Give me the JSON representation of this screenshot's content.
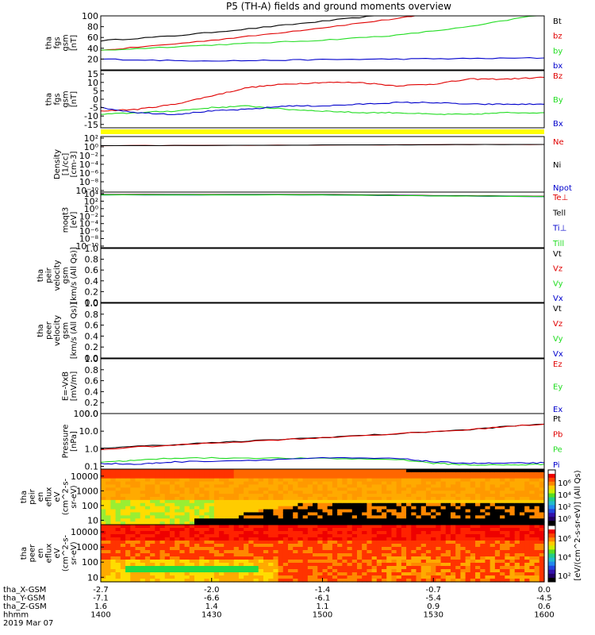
{
  "title": "P5 (TH-A) fields and ground moments overview",
  "colors": {
    "black": "#000000",
    "red": "#e00000",
    "green": "#22dd22",
    "blue": "#0000cc",
    "yellow": "#ffff00"
  },
  "chart_data": [
    {
      "type": "line",
      "id": "fgs-gsm-mag",
      "ylabel": [
        "tha",
        "fgs",
        "gsm",
        "[nT]"
      ],
      "ylim": [
        0,
        100
      ],
      "yticks": [
        "20",
        "40",
        "60",
        "80",
        "100"
      ],
      "series": [
        {
          "name": "Bt",
          "color": "#000000",
          "x": [
            0,
            10,
            20,
            30,
            40
          ],
          "y": [
            54,
            63,
            76,
            90,
            104
          ]
        },
        {
          "name": "bz",
          "color": "#e00000",
          "x": [
            0,
            10,
            20,
            30,
            40,
            45
          ],
          "y": [
            36,
            48,
            62,
            78,
            95,
            104
          ]
        },
        {
          "name": "by",
          "color": "#22dd22",
          "x": [
            0,
            10,
            20,
            30,
            40,
            50,
            60
          ],
          "y": [
            36,
            43,
            49,
            55,
            64,
            80,
            104
          ]
        },
        {
          "name": "bx",
          "color": "#0000cc",
          "x": [
            0,
            10,
            20,
            30,
            40,
            50,
            60
          ],
          "y": [
            20,
            17,
            17,
            19,
            20,
            21,
            22
          ]
        }
      ],
      "legend": [
        {
          "text": "Bt",
          "color": "#000000"
        },
        {
          "text": "bz",
          "color": "#e00000"
        },
        {
          "text": "by",
          "color": "#22dd22"
        },
        {
          "text": "bx",
          "color": "#0000cc"
        }
      ]
    },
    {
      "type": "line",
      "id": "fgs-gsm-comp",
      "ylabel": [
        "tha",
        "fgs",
        "gsm",
        "[nT]"
      ],
      "ylim": [
        -17,
        17
      ],
      "yticks": [
        "-15",
        "-10",
        "-5",
        "0",
        "5",
        "10",
        "15"
      ],
      "series": [
        {
          "name": "Bz",
          "color": "#e00000",
          "x": [
            0,
            5,
            10,
            15,
            20,
            25,
            30,
            35,
            40,
            45,
            50,
            55,
            60
          ],
          "y": [
            -7,
            -6,
            -3,
            2,
            7,
            9,
            10,
            10,
            8,
            9,
            12,
            12,
            13
          ]
        },
        {
          "name": "By",
          "color": "#22dd22",
          "x": [
            0,
            5,
            10,
            15,
            20,
            25,
            30,
            35,
            40,
            45,
            50,
            55,
            60
          ],
          "y": [
            -9,
            -8,
            -7,
            -5,
            -4,
            -6,
            -7,
            -8,
            -8,
            -9,
            -9,
            -8,
            -8
          ]
        },
        {
          "name": "Bx",
          "color": "#0000cc",
          "x": [
            0,
            5,
            10,
            15,
            20,
            25,
            30,
            35,
            40,
            45,
            50,
            55,
            60
          ],
          "y": [
            -5,
            -8,
            -9,
            -7,
            -6,
            -4,
            -4,
            -3,
            -2,
            -2,
            -3,
            -3,
            -3
          ]
        }
      ],
      "legend": [
        {
          "text": "Bz",
          "color": "#e00000"
        },
        {
          "text": "By",
          "color": "#22dd22"
        },
        {
          "text": "Bx",
          "color": "#0000cc"
        }
      ]
    },
    {
      "type": "line",
      "id": "density",
      "ylabel": [
        "Density",
        "[1/cc]",
        "[cm-3]"
      ],
      "ylim": [
        1e-12,
        100
      ],
      "log": true,
      "yticks": [
        "10²",
        "10⁰",
        "10⁻²",
        "10⁻⁴",
        "10⁻⁶",
        "10⁻⁸",
        "10⁻¹⁰"
      ],
      "series": [
        {
          "name": "Ne",
          "color": "#e00000",
          "x": [
            0,
            20,
            40,
            60
          ],
          "y": [
            0.5,
            0.6,
            0.8,
            1.0
          ]
        },
        {
          "name": "Ni",
          "color": "#000000",
          "x": [
            0,
            20,
            40,
            60
          ],
          "y": [
            0.5,
            0.6,
            0.8,
            1.0
          ]
        }
      ],
      "legend": [
        {
          "text": "Ne",
          "color": "#e00000"
        },
        {
          "text": "Ni",
          "color": "#000000"
        },
        {
          "text": "Npot",
          "color": "#0000cc"
        }
      ]
    },
    {
      "type": "line",
      "id": "temperature",
      "ylabel": [
        "moqt3",
        "[eV]"
      ],
      "ylim": [
        1e-12,
        10000
      ],
      "log": true,
      "yticks": [
        "10⁴",
        "10²",
        "10⁰",
        "10⁻²",
        "10⁻⁴",
        "10⁻⁶",
        "10⁻⁸",
        "10⁻¹⁰"
      ],
      "series": [
        {
          "name": "Te⊥",
          "color": "#e00000",
          "x": [
            0,
            30,
            45,
            60
          ],
          "y": [
            2000,
            2000,
            1000,
            600
          ]
        },
        {
          "name": "Tell",
          "color": "#000000",
          "x": [
            0,
            30,
            45,
            60
          ],
          "y": [
            2000,
            2000,
            1000,
            600
          ]
        },
        {
          "name": "Ti⊥",
          "color": "#0000cc",
          "x": [
            0,
            30,
            45,
            60
          ],
          "y": [
            1500,
            1500,
            800,
            500
          ]
        },
        {
          "name": "Till",
          "color": "#22dd22",
          "x": [
            0,
            30,
            45,
            60
          ],
          "y": [
            1500,
            1500,
            800,
            500
          ]
        }
      ],
      "legend": [
        {
          "text": "Te⊥",
          "color": "#e00000"
        },
        {
          "text": "Tell",
          "color": "#000000"
        },
        {
          "text": "Ti⊥",
          "color": "#0000cc"
        },
        {
          "text": "Till",
          "color": "#22dd22"
        }
      ]
    },
    {
      "type": "line",
      "id": "peir-velocity",
      "ylabel": [
        "tha",
        "peir",
        "velocity",
        "gsm",
        "[km/s (All Qs)]"
      ],
      "ylim": [
        0,
        1
      ],
      "yticks": [
        "0.0",
        "0.2",
        "0.4",
        "0.6",
        "0.8",
        "1.0"
      ],
      "series": [],
      "legend": [
        {
          "text": "Vt",
          "color": "#000000"
        },
        {
          "text": "Vz",
          "color": "#e00000"
        },
        {
          "text": "Vy",
          "color": "#22dd22"
        },
        {
          "text": "Vx",
          "color": "#0000cc"
        }
      ]
    },
    {
      "type": "line",
      "id": "peer-velocity",
      "ylabel": [
        "tha",
        "peer",
        "velocity",
        "gsm",
        "[km/s (All Qs)]"
      ],
      "ylim": [
        0,
        1
      ],
      "yticks": [
        "0.0",
        "0.2",
        "0.4",
        "0.6",
        "0.8",
        "1.0"
      ],
      "series": [],
      "legend": [
        {
          "text": "Vt",
          "color": "#000000"
        },
        {
          "text": "Vz",
          "color": "#e00000"
        },
        {
          "text": "Vy",
          "color": "#22dd22"
        },
        {
          "text": "Vx",
          "color": "#0000cc"
        }
      ]
    },
    {
      "type": "line",
      "id": "efield",
      "ylabel": [
        "E=-VxB",
        "[mV/m]"
      ],
      "ylim": [
        0,
        1
      ],
      "yticks": [
        "0.0",
        "0.2",
        "0.4",
        "0.6",
        "0.8",
        "1.0"
      ],
      "series": [],
      "legend": [
        {
          "text": "Ez",
          "color": "#e00000"
        },
        {
          "text": "Ey",
          "color": "#22dd22"
        },
        {
          "text": "Ex",
          "color": "#0000cc"
        }
      ]
    },
    {
      "type": "line",
      "id": "pressure",
      "ylabel": [
        "Pressure",
        "[nPa]"
      ],
      "ylim": [
        0.07,
        100
      ],
      "log": true,
      "yticks": [
        "0.1",
        "1.0",
        "10.0",
        "100.0"
      ],
      "series": [
        {
          "name": "Pt",
          "color": "#000000",
          "x": [
            0,
            10,
            20,
            30,
            40,
            50,
            60
          ],
          "y": [
            1.1,
            1.7,
            2.7,
            4.3,
            7.0,
            12,
            25
          ]
        },
        {
          "name": "Pb",
          "color": "#e00000",
          "x": [
            0,
            10,
            20,
            30,
            40,
            50,
            60
          ],
          "y": [
            0.9,
            1.6,
            2.6,
            4.2,
            6.9,
            12,
            25
          ]
        },
        {
          "name": "Pe",
          "color": "#22dd22",
          "x": [
            0,
            5,
            10,
            20,
            30,
            40,
            45,
            50,
            55,
            60
          ],
          "y": [
            0.18,
            0.22,
            0.3,
            0.3,
            0.28,
            0.25,
            0.15,
            0.12,
            0.12,
            0.13
          ]
        },
        {
          "name": "Pi",
          "color": "#0000cc",
          "x": [
            0,
            5,
            10,
            20,
            30,
            40,
            45,
            50,
            55,
            60
          ],
          "y": [
            0.15,
            0.13,
            0.18,
            0.22,
            0.3,
            0.28,
            0.18,
            0.15,
            0.15,
            0.16
          ]
        }
      ],
      "legend": [
        {
          "text": "Pt",
          "color": "#000000"
        },
        {
          "text": "Pb",
          "color": "#e00000"
        },
        {
          "text": "Pe",
          "color": "#22dd22"
        },
        {
          "text": "Pi",
          "color": "#0000cc"
        }
      ]
    },
    {
      "type": "heatmap",
      "id": "peir-eflux",
      "ylabel": [
        "tha",
        "peir",
        "en",
        "eflux",
        "eV",
        "(cm^2-s-",
        "sr-eV)"
      ],
      "ylim": [
        5,
        30000
      ],
      "log": true,
      "yticks": [
        "10",
        "100",
        "1000",
        "10000"
      ]
    },
    {
      "type": "heatmap",
      "id": "peer-eflux",
      "ylabel": [
        "tha",
        "peer",
        "en",
        "eflux",
        "eV",
        "(cm^2-s-",
        "sr-eV)"
      ],
      "ylim": [
        5,
        30000
      ],
      "log": true,
      "yticks": [
        "10",
        "100",
        "1000",
        "10000"
      ]
    }
  ],
  "colorbar": {
    "label": "[eV/(cm^2-s-sr-eV)] (All Qs)",
    "upper_ticks": [
      "10⁶",
      "10⁴",
      "10²",
      "10⁰"
    ],
    "lower_ticks": [
      "10⁶",
      "10⁴",
      "10²"
    ]
  },
  "xaxis": {
    "rows": [
      {
        "label": "tha_X-GSM",
        "values": [
          "-2.7",
          "-2.0",
          "-1.4",
          "-0.7",
          "0.0"
        ]
      },
      {
        "label": "tha_Y-GSM",
        "values": [
          "-7.1",
          "-6.6",
          "-6.1",
          "-5.4",
          "-4.5"
        ]
      },
      {
        "label": "tha_Z-GSM",
        "values": [
          "1.6",
          "1.4",
          "1.1",
          "0.9",
          "0.6"
        ]
      },
      {
        "label": "hhmm",
        "values": [
          "1400",
          "1430",
          "1500",
          "1530",
          "1600"
        ]
      }
    ],
    "date": "2019 Mar 07"
  }
}
